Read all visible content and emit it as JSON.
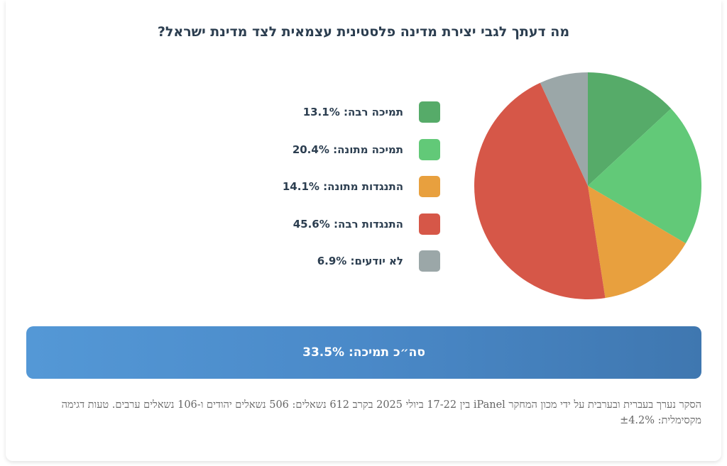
{
  "title": "מה דעתך לגבי יצירת מדינה פלסטינית עצמאית לצד מדינת ישראל?",
  "chart_data": {
    "type": "pie",
    "title": "מה דעתך לגבי יצירת מדינה פלסטינית עצמאית לצד מדינת ישראל?",
    "slices": [
      {
        "label": "תמיכה רבה",
        "value": 13.1,
        "value_label": "13.1%",
        "color": "#56ab69"
      },
      {
        "label": "תמיכה מתונה",
        "value": 20.4,
        "value_label": "20.4%",
        "color": "#62c978"
      },
      {
        "label": "התנגדות מתונה",
        "value": 14.1,
        "value_label": "14.1%",
        "color": "#e8a03e"
      },
      {
        "label": "התנגדות רבה",
        "value": 45.6,
        "value_label": "45.6%",
        "color": "#d65748"
      },
      {
        "label": "לא יודעים",
        "value": 6.9,
        "value_label": "6.9%",
        "color": "#9ba7a8"
      }
    ],
    "legend_position": "left"
  },
  "summary": {
    "text": "סה״כ תמיכה: 33.5%",
    "color": "#4a89c8"
  },
  "footnote": "הסקר נערך בעברית ובערבית על ידי מכון המחקר iPanel בין 17-22 ביולי 2025 בקרב 612 נשאלים: 506 נשאלים יהודים ו-106 נשאלים ערבים. טעות דגימה מקסימלית: ±4.2%"
}
